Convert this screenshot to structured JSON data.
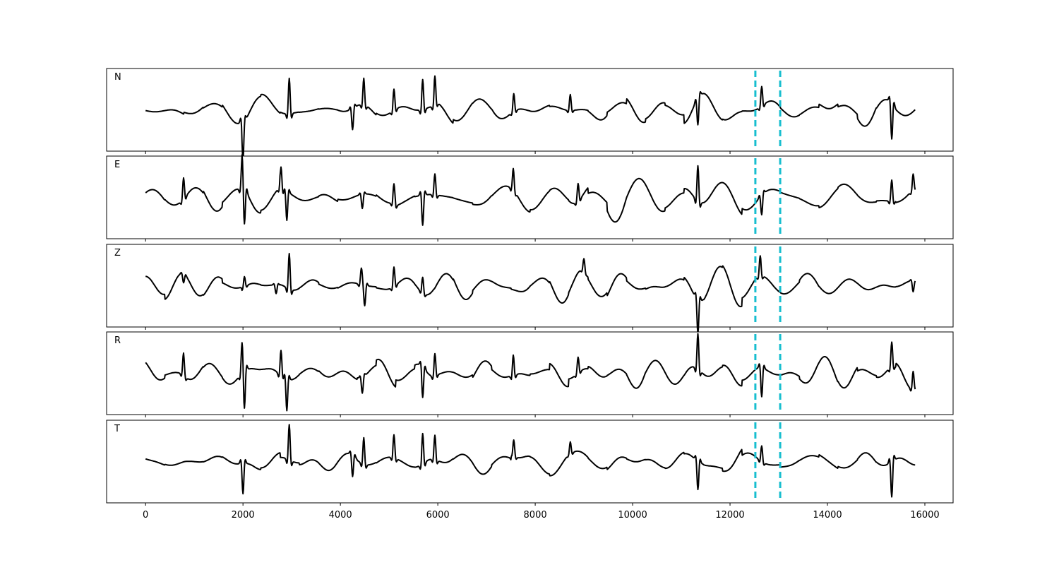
{
  "chart_data": {
    "type": "line",
    "title": "",
    "xlabel": "",
    "ylabel": "",
    "xlim": [
      -800,
      16580
    ],
    "xticks": [
      0,
      2000,
      4000,
      6000,
      8000,
      10000,
      12000,
      14000,
      16000
    ],
    "xtick_labels": [
      "0",
      "2000",
      "4000",
      "6000",
      "8000",
      "10000",
      "12000",
      "14000",
      "16000"
    ],
    "x_range": [
      0,
      15800
    ],
    "grid": false,
    "legend": "none",
    "trace_color": "#000000",
    "marker_color": "#17becf",
    "vertical_markers": [
      12520,
      13030
    ],
    "panels": [
      {
        "label": "N",
        "amplitude_scale": 1.0,
        "events": [
          {
            "x": 2000,
            "amp": -1.0
          },
          {
            "x": 2950,
            "amp": 1.0
          },
          {
            "x": 4250,
            "amp": -0.6
          },
          {
            "x": 4480,
            "amp": 0.75
          },
          {
            "x": 5100,
            "amp": 0.6
          },
          {
            "x": 5690,
            "amp": 0.85
          },
          {
            "x": 5940,
            "amp": 0.75
          },
          {
            "x": 7560,
            "amp": 0.5
          },
          {
            "x": 8720,
            "amp": 0.45
          },
          {
            "x": 11340,
            "amp": -0.75
          },
          {
            "x": 12650,
            "amp": 0.55
          },
          {
            "x": 15320,
            "amp": -1.0
          }
        ]
      },
      {
        "label": "E",
        "amplitude_scale": 1.0,
        "events": [
          {
            "x": 780,
            "amp": 0.6
          },
          {
            "x": 1980,
            "amp": 0.75
          },
          {
            "x": 2030,
            "amp": -0.9
          },
          {
            "x": 2780,
            "amp": 0.7
          },
          {
            "x": 2900,
            "amp": -0.8
          },
          {
            "x": 4450,
            "amp": -0.4
          },
          {
            "x": 5100,
            "amp": 0.55
          },
          {
            "x": 5690,
            "amp": -0.85
          },
          {
            "x": 5940,
            "amp": 0.6
          },
          {
            "x": 7550,
            "amp": 0.6
          },
          {
            "x": 8880,
            "amp": 0.5
          },
          {
            "x": 11340,
            "amp": 1.0
          },
          {
            "x": 12650,
            "amp": -0.55
          },
          {
            "x": 15320,
            "amp": 0.6
          },
          {
            "x": 15760,
            "amp": 0.45
          }
        ]
      },
      {
        "label": "Z",
        "amplitude_scale": 1.0,
        "events": [
          {
            "x": 780,
            "amp": -0.25
          },
          {
            "x": 2030,
            "amp": 0.3
          },
          {
            "x": 2680,
            "amp": -0.25
          },
          {
            "x": 2950,
            "amp": 1.0
          },
          {
            "x": 4430,
            "amp": 0.45
          },
          {
            "x": 4500,
            "amp": -0.55
          },
          {
            "x": 5100,
            "amp": 0.55
          },
          {
            "x": 5690,
            "amp": 0.45
          },
          {
            "x": 9000,
            "amp": 0.35
          },
          {
            "x": 11340,
            "amp": -0.95
          },
          {
            "x": 12620,
            "amp": 0.55
          },
          {
            "x": 15760,
            "amp": -0.3
          }
        ]
      },
      {
        "label": "R",
        "amplitude_scale": 1.0,
        "events": [
          {
            "x": 780,
            "amp": 0.6
          },
          {
            "x": 1980,
            "amp": 0.75
          },
          {
            "x": 2030,
            "amp": -0.95
          },
          {
            "x": 2780,
            "amp": 0.7
          },
          {
            "x": 2900,
            "amp": -0.9
          },
          {
            "x": 4450,
            "amp": -0.45
          },
          {
            "x": 5690,
            "amp": -0.85
          },
          {
            "x": 5940,
            "amp": 0.6
          },
          {
            "x": 7550,
            "amp": 0.6
          },
          {
            "x": 8880,
            "amp": 0.45
          },
          {
            "x": 11340,
            "amp": 1.0
          },
          {
            "x": 12650,
            "amp": -0.8
          },
          {
            "x": 15320,
            "amp": 0.7
          },
          {
            "x": 15760,
            "amp": 0.5
          }
        ]
      },
      {
        "label": "T",
        "amplitude_scale": 1.0,
        "events": [
          {
            "x": 2000,
            "amp": -0.85
          },
          {
            "x": 2950,
            "amp": 1.0
          },
          {
            "x": 4250,
            "amp": -0.6
          },
          {
            "x": 4480,
            "amp": 0.75
          },
          {
            "x": 5100,
            "amp": 0.65
          },
          {
            "x": 5690,
            "amp": 0.85
          },
          {
            "x": 5940,
            "amp": 0.7
          },
          {
            "x": 7560,
            "amp": 0.45
          },
          {
            "x": 8720,
            "amp": 0.35
          },
          {
            "x": 11340,
            "amp": -0.8
          },
          {
            "x": 12650,
            "amp": 0.45
          },
          {
            "x": 15320,
            "amp": -1.0
          }
        ]
      }
    ]
  }
}
